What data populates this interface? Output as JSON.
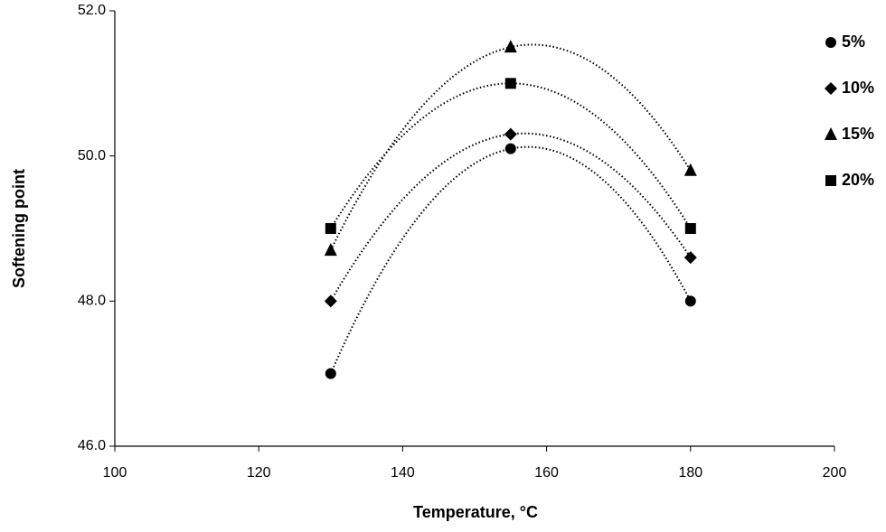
{
  "chart_data": {
    "type": "scatter",
    "x_label": "Temperature, °C",
    "y_label": "Softening point",
    "x": [
      130,
      155,
      180
    ],
    "series": [
      {
        "name": "5%",
        "color": "#000000",
        "marker": "circle",
        "values": [
          47.0,
          50.1,
          48.0
        ]
      },
      {
        "name": "10%",
        "color": "#000000",
        "marker": "diamond",
        "values": [
          48.0,
          50.3,
          48.6
        ]
      },
      {
        "name": "15%",
        "color": "#000000",
        "marker": "triangle",
        "values": [
          48.7,
          51.5,
          49.8
        ]
      },
      {
        "name": "20%",
        "color": "#000000",
        "marker": "square",
        "values": [
          49.0,
          51.0,
          49.0
        ]
      }
    ],
    "trendline": "quadratic",
    "xlim": [
      100,
      200
    ],
    "xticks": [
      100,
      120,
      140,
      160,
      180,
      200
    ],
    "ylim": [
      46,
      52
    ],
    "yticks": [
      {
        "value": 46,
        "label": "46.0"
      },
      {
        "value": 48,
        "label": "48.0"
      },
      {
        "value": 50,
        "label": "50.0"
      },
      {
        "value": 52,
        "label": "52.0"
      }
    ],
    "grid": false,
    "legend": "top-right"
  }
}
